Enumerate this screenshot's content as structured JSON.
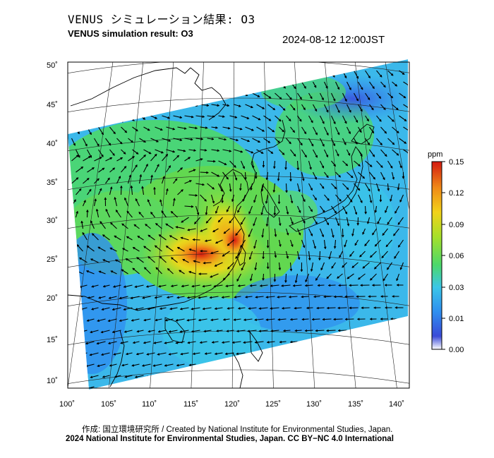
{
  "header": {
    "title_jp": "VENUS シミュレーション結果: O3",
    "title_en": "VENUS simulation result: O3",
    "datetime": "2024-08-12 12:00JST"
  },
  "map": {
    "lat_ticks": [
      "50˚",
      "45˚",
      "40˚",
      "35˚",
      "30˚",
      "25˚",
      "20˚",
      "15˚",
      "10˚"
    ],
    "lon_ticks": [
      "100˚",
      "105˚",
      "110˚",
      "115˚",
      "120˚",
      "125˚",
      "130˚",
      "135˚",
      "140˚"
    ],
    "layers": [
      "ozone-concentration-field",
      "wind-vectors",
      "coastlines",
      "graticule"
    ]
  },
  "colorbar": {
    "unit": "ppm",
    "ticks": [
      "0.15",
      "0.12",
      "0.09",
      "0.06",
      "0.03",
      "0.01",
      "0.00"
    ],
    "colors": [
      "#ffffff",
      "#3a4ad8",
      "#2f8ff0",
      "#3bc6e8",
      "#4cd86a",
      "#a6e02a",
      "#f2d21a",
      "#f08a18",
      "#d41a10"
    ]
  },
  "footer": {
    "credit_jp": "作成: 国立環境研究所 / Created by National Institute for Environmental Studies, Japan.",
    "license": "2024 National Institute for Environmental Studies, Japan. CC BY−NC 4.0 International"
  }
}
